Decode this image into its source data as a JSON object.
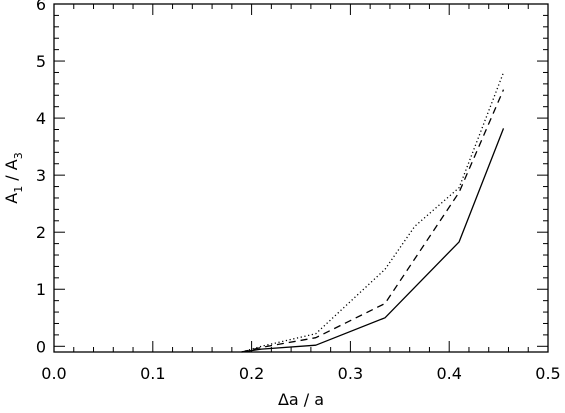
{
  "chart_data": {
    "type": "line",
    "xlabel": "Δa / a",
    "ylabel": {
      "a": "A",
      "a_sub": "1",
      "sep": " / ",
      "b": "A",
      "b_sub": "3"
    },
    "xlim": [
      0.0,
      0.5
    ],
    "ylim": [
      -0.1,
      6.0
    ],
    "x_ticks": [
      "0.0",
      "0.1",
      "0.2",
      "0.3",
      "0.4",
      "0.5"
    ],
    "y_ticks": [
      "0",
      "1",
      "2",
      "3",
      "4",
      "5",
      "6"
    ],
    "grid": false,
    "series": [
      {
        "style": "solid",
        "x": [
          0.19,
          0.21,
          0.265,
          0.335,
          0.41,
          0.455
        ],
        "y": [
          -0.1,
          -0.05,
          0.02,
          0.5,
          1.83,
          3.82
        ]
      },
      {
        "style": "dashed",
        "x": [
          0.19,
          0.21,
          0.265,
          0.335,
          0.41,
          0.455
        ],
        "y": [
          -0.1,
          -0.02,
          0.15,
          0.75,
          2.7,
          4.5
        ]
      },
      {
        "style": "dotted",
        "x": [
          0.19,
          0.21,
          0.265,
          0.335,
          0.365,
          0.41,
          0.455
        ],
        "y": [
          -0.1,
          0.0,
          0.22,
          1.35,
          2.1,
          2.78,
          4.8
        ]
      }
    ],
    "colors": {
      "line": "#000000",
      "background": "#ffffff"
    }
  }
}
